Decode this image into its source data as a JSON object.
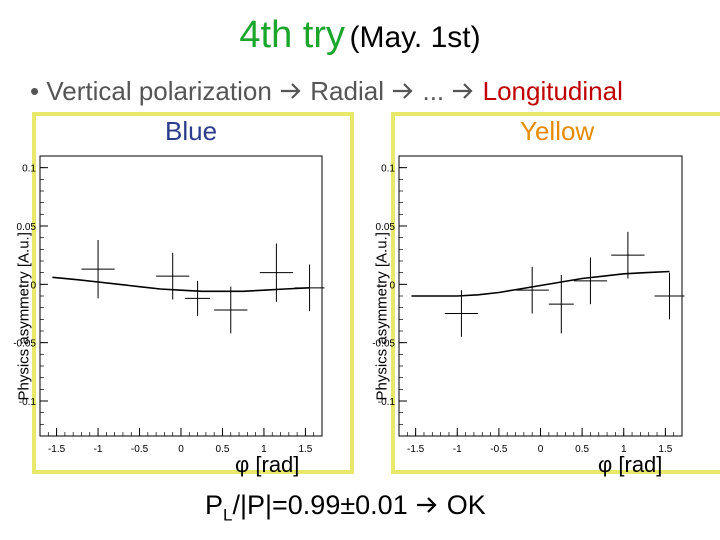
{
  "slide": {
    "title_main": "4th try",
    "title_sub": "(May. 1st)",
    "bullet_part1": "Vertical polarization",
    "bullet_part2": "Radial",
    "bullet_part3": "...",
    "bullet_part4": "Longitudinal",
    "result_p": "P",
    "result_sub": "L",
    "result_rest": "/|P|=0.99±0.01",
    "result_ok": "OK"
  },
  "colors": {
    "title_green": "#1aa62a",
    "blue_label": "#2a3c8c",
    "yellow_label": "#e68a00",
    "longitudinal_red": "#c00000",
    "frame_yellow": "#e8e86a"
  },
  "chart_data": [
    {
      "type": "scatter",
      "title": "Blue",
      "xlabel": "φ [rad]",
      "ylabel": "Physics asymmetry [A.u.]",
      "xlim": [
        -1.7,
        1.7
      ],
      "ylim": [
        -0.13,
        0.11
      ],
      "xticks": [
        -1.5,
        -1,
        -0.5,
        0,
        0.5,
        1,
        1.5
      ],
      "xtick_labels": [
        "-1.5",
        "-1",
        "-0.5",
        "0",
        "0.5",
        "1",
        "1.5"
      ],
      "yticks": [
        -0.1,
        -0.05,
        0,
        0.05,
        0.1
      ],
      "ytick_labels": [
        "-0.1",
        "-0.05",
        "0",
        "0.05",
        "0.1"
      ],
      "points": [
        {
          "x": -1.0,
          "y": 0.013,
          "xerr": 0.2,
          "yerr": 0.025
        },
        {
          "x": -0.1,
          "y": 0.007,
          "xerr": 0.2,
          "yerr": 0.02
        },
        {
          "x": 0.2,
          "y": -0.012,
          "xerr": 0.15,
          "yerr": 0.015
        },
        {
          "x": 0.6,
          "y": -0.022,
          "xerr": 0.2,
          "yerr": 0.02
        },
        {
          "x": 1.15,
          "y": 0.01,
          "xerr": 0.2,
          "yerr": 0.025
        },
        {
          "x": 1.55,
          "y": -0.003,
          "xerr": 0.18,
          "yerr": 0.02
        }
      ],
      "fit": {
        "x": [
          -1.55,
          -1.25,
          -1.0,
          -0.75,
          -0.5,
          -0.25,
          0.0,
          0.25,
          0.5,
          0.75,
          1.0,
          1.25,
          1.55
        ],
        "y": [
          0.006,
          0.004,
          0.002,
          0.0,
          -0.002,
          -0.004,
          -0.005,
          -0.006,
          -0.006,
          -0.006,
          -0.005,
          -0.004,
          -0.003
        ]
      }
    },
    {
      "type": "scatter",
      "title": "Yellow",
      "xlabel": "φ [rad]",
      "ylabel": "Physics asymmetry [A.u.]",
      "xlim": [
        -1.7,
        1.7
      ],
      "ylim": [
        -0.13,
        0.11
      ],
      "xticks": [
        -1.5,
        -1,
        -0.5,
        0,
        0.5,
        1,
        1.5
      ],
      "xtick_labels": [
        "-1.5",
        "-1",
        "-0.5",
        "0",
        "0.5",
        "1",
        "1.5"
      ],
      "yticks": [
        -0.1,
        -0.05,
        0,
        0.05,
        0.1
      ],
      "ytick_labels": [
        "-0.1",
        "-0.05",
        "0",
        "0.05",
        "0.1"
      ],
      "points": [
        {
          "x": -0.95,
          "y": -0.025,
          "xerr": 0.2,
          "yerr": 0.02
        },
        {
          "x": -0.1,
          "y": -0.005,
          "xerr": 0.2,
          "yerr": 0.02
        },
        {
          "x": 0.25,
          "y": -0.017,
          "xerr": 0.15,
          "yerr": 0.025
        },
        {
          "x": 0.6,
          "y": 0.003,
          "xerr": 0.2,
          "yerr": 0.02
        },
        {
          "x": 1.05,
          "y": 0.025,
          "xerr": 0.2,
          "yerr": 0.02
        },
        {
          "x": 1.55,
          "y": -0.01,
          "xerr": 0.18,
          "yerr": 0.02
        }
      ],
      "fit": {
        "x": [
          -1.55,
          -1.25,
          -1.0,
          -0.75,
          -0.5,
          -0.25,
          0.0,
          0.25,
          0.5,
          0.75,
          1.0,
          1.25,
          1.55
        ],
        "y": [
          -0.01,
          -0.01,
          -0.01,
          -0.009,
          -0.007,
          -0.004,
          -0.001,
          0.002,
          0.005,
          0.007,
          0.009,
          0.01,
          0.011
        ]
      }
    }
  ]
}
